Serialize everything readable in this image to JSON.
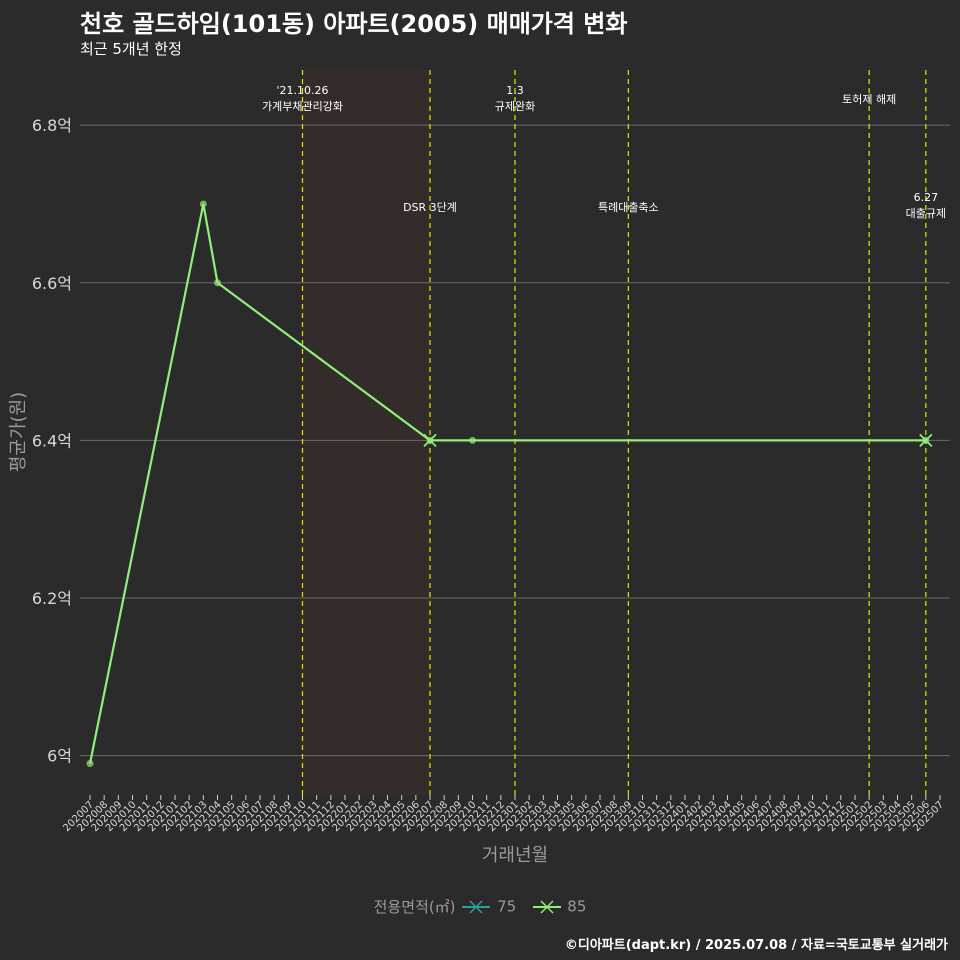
{
  "title": "천호 골드하임(101동) 아파트(2005) 매매가격 변화",
  "subtitle": "최근 5개년 한정",
  "caption": "©디아파트(dapt.kr) / 2025.07.08 / 자료=국토교통부 실거래가",
  "colors": {
    "background": "#2b2b2b",
    "series_85": "#90ee7a",
    "series_75": "#2aa198",
    "event_line": "#e6e600",
    "grid": "#6a6a6a",
    "shade": "#3a2d2a"
  },
  "chart_data": {
    "type": "line",
    "xlabel": "거래년월",
    "ylabel": "평균가(원)",
    "ylim": [
      5.95,
      6.87
    ],
    "y_ticks": [
      6.0,
      6.2,
      6.4,
      6.6,
      6.8
    ],
    "y_tick_labels": [
      "6억",
      "6.2억",
      "6.4억",
      "6.6억",
      "6.8억"
    ],
    "x_ticks": [
      "202007",
      "202008",
      "202009",
      "202010",
      "202011",
      "202012",
      "202101",
      "202102",
      "202103",
      "202104",
      "202105",
      "202106",
      "202107",
      "202108",
      "202109",
      "202110",
      "202111",
      "202112",
      "202201",
      "202202",
      "202203",
      "202204",
      "202205",
      "202206",
      "202207",
      "202208",
      "202209",
      "202210",
      "202211",
      "202212",
      "202301",
      "202302",
      "202303",
      "202304",
      "202305",
      "202306",
      "202307",
      "202308",
      "202309",
      "202310",
      "202311",
      "202312",
      "202401",
      "202402",
      "202403",
      "202404",
      "202405",
      "202406",
      "202407",
      "202408",
      "202409",
      "202410",
      "202411",
      "202412",
      "202501",
      "202502",
      "202503",
      "202504",
      "202505",
      "202506",
      "202507"
    ],
    "shaded_range": [
      "202110",
      "202207"
    ],
    "legend_title": "전용면적(㎡)",
    "series": [
      {
        "name": "75",
        "points": []
      },
      {
        "name": "85",
        "points": [
          {
            "x": "202007",
            "y": 5.99
          },
          {
            "x": "202103",
            "y": 6.7
          },
          {
            "x": "202104",
            "y": 6.6
          },
          {
            "x": "202207",
            "y": 6.4
          },
          {
            "x": "202210",
            "y": 6.4
          },
          {
            "x": "202506",
            "y": 6.4
          }
        ]
      }
    ],
    "cross_markers": [
      {
        "x": "202207",
        "y": 6.4
      },
      {
        "x": "202506",
        "y": 6.4
      }
    ],
    "events": [
      {
        "x": "202110",
        "lines": [
          "'21.10.26",
          "가계부채관리강화"
        ],
        "level": "top"
      },
      {
        "x": "202207",
        "lines": [
          "DSR 3단계"
        ],
        "level": "mid"
      },
      {
        "x": "202301",
        "lines": [
          "1.3",
          "규제완화"
        ],
        "level": "top"
      },
      {
        "x": "202309",
        "lines": [
          "특례대출축소"
        ],
        "level": "mid"
      },
      {
        "x": "202502",
        "lines": [
          "토허제 해제"
        ],
        "level": "top"
      },
      {
        "x": "202506",
        "lines": [
          "6.27",
          "대출규제"
        ],
        "level": "mid"
      }
    ]
  }
}
